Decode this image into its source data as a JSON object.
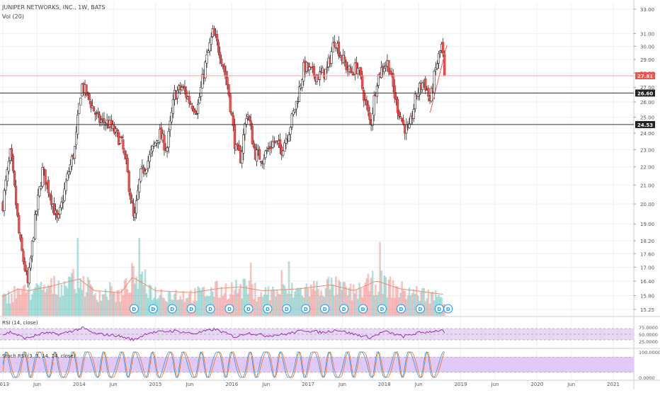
{
  "chart_data": {
    "type": "candlestick",
    "title": "JUNIPER NETWORKS, INC., 1W, BATS",
    "volume_label": "Vol (20)",
    "price_axis": {
      "ticks": [
        "33.00",
        "31.00",
        "30.00",
        "29.00",
        "28.00",
        "27.00",
        "26.00",
        "25.00",
        "24.00",
        "23.00",
        "22.00",
        "21.00",
        "20.00",
        "19.00",
        "18.20",
        "17.60",
        "17.00",
        "16.40",
        "15.80",
        "15.25"
      ],
      "tick_values": [
        33.0,
        31.0,
        30.0,
        29.0,
        28.0,
        27.0,
        26.0,
        25.0,
        24.0,
        23.0,
        22.0,
        21.0,
        20.0,
        19.0,
        18.2,
        17.6,
        17.0,
        16.4,
        15.8,
        15.25
      ],
      "scale": "log"
    },
    "price_badges": [
      {
        "label": "27.81",
        "value": 27.81,
        "color": "#ef5350"
      },
      {
        "label": "26.60",
        "value": 26.6,
        "color": "#222222"
      },
      {
        "label": "24.53",
        "value": 24.53,
        "color": "#222222"
      }
    ],
    "horizontal_lines": [
      {
        "value": 27.81,
        "color": "#f4a0a0"
      },
      {
        "value": 26.6,
        "color": "#333333"
      },
      {
        "value": 24.53,
        "color": "#333333"
      }
    ],
    "x_labels": [
      "2013",
      "Jun",
      "2014",
      "Jun",
      "2015",
      "Jun",
      "2016",
      "Jun",
      "2017",
      "Jun",
      "2018",
      "Jun",
      "2019",
      "Jun",
      "2020",
      "Jun",
      "2021"
    ],
    "x_label_dates": [
      2013.0,
      2013.45,
      2014.0,
      2014.45,
      2015.0,
      2015.45,
      2016.0,
      2016.45,
      2017.0,
      2017.45,
      2018.0,
      2018.45,
      2019.0,
      2019.45,
      2020.0,
      2020.45,
      2021.0
    ],
    "price_keypoints": [
      {
        "t": 2013.0,
        "p": 20.0
      },
      {
        "t": 2013.1,
        "p": 22.8
      },
      {
        "t": 2013.22,
        "p": 18.2
      },
      {
        "t": 2013.33,
        "p": 16.2
      },
      {
        "t": 2013.4,
        "p": 18.5
      },
      {
        "t": 2013.52,
        "p": 21.8
      },
      {
        "t": 2013.62,
        "p": 20.5
      },
      {
        "t": 2013.72,
        "p": 19.0
      },
      {
        "t": 2013.85,
        "p": 21.5
      },
      {
        "t": 2013.95,
        "p": 23.2
      },
      {
        "t": 2014.03,
        "p": 27.2
      },
      {
        "t": 2014.12,
        "p": 26.3
      },
      {
        "t": 2014.25,
        "p": 24.8
      },
      {
        "t": 2014.38,
        "p": 24.6
      },
      {
        "t": 2014.55,
        "p": 23.5
      },
      {
        "t": 2014.62,
        "p": 22.0
      },
      {
        "t": 2014.72,
        "p": 19.0
      },
      {
        "t": 2014.8,
        "p": 21.5
      },
      {
        "t": 2014.92,
        "p": 22.5
      },
      {
        "t": 2015.05,
        "p": 24.0
      },
      {
        "t": 2015.15,
        "p": 23.0
      },
      {
        "t": 2015.25,
        "p": 26.5
      },
      {
        "t": 2015.35,
        "p": 27.0
      },
      {
        "t": 2015.45,
        "p": 26.0
      },
      {
        "t": 2015.55,
        "p": 25.5
      },
      {
        "t": 2015.65,
        "p": 28.5
      },
      {
        "t": 2015.75,
        "p": 31.0
      },
      {
        "t": 2015.85,
        "p": 29.5
      },
      {
        "t": 2015.95,
        "p": 27.0
      },
      {
        "t": 2016.05,
        "p": 23.0
      },
      {
        "t": 2016.12,
        "p": 22.5
      },
      {
        "t": 2016.2,
        "p": 25.5
      },
      {
        "t": 2016.3,
        "p": 22.8
      },
      {
        "t": 2016.4,
        "p": 22.5
      },
      {
        "t": 2016.55,
        "p": 23.5
      },
      {
        "t": 2016.65,
        "p": 23.0
      },
      {
        "t": 2016.75,
        "p": 24.2
      },
      {
        "t": 2016.85,
        "p": 26.0
      },
      {
        "t": 2016.95,
        "p": 28.5
      },
      {
        "t": 2017.05,
        "p": 28.0
      },
      {
        "t": 2017.15,
        "p": 27.8
      },
      {
        "t": 2017.25,
        "p": 28.2
      },
      {
        "t": 2017.35,
        "p": 30.6
      },
      {
        "t": 2017.45,
        "p": 29.0
      },
      {
        "t": 2017.55,
        "p": 28.0
      },
      {
        "t": 2017.65,
        "p": 28.5
      },
      {
        "t": 2017.75,
        "p": 26.0
      },
      {
        "t": 2017.82,
        "p": 24.5
      },
      {
        "t": 2017.9,
        "p": 27.5
      },
      {
        "t": 2017.98,
        "p": 28.5
      },
      {
        "t": 2018.05,
        "p": 28.8
      },
      {
        "t": 2018.15,
        "p": 26.0
      },
      {
        "t": 2018.25,
        "p": 24.5
      },
      {
        "t": 2018.32,
        "p": 24.0
      },
      {
        "t": 2018.42,
        "p": 26.5
      },
      {
        "t": 2018.52,
        "p": 27.5
      },
      {
        "t": 2018.6,
        "p": 26.0
      },
      {
        "t": 2018.68,
        "p": 28.5
      },
      {
        "t": 2018.75,
        "p": 30.0
      },
      {
        "t": 2018.8,
        "p": 27.81
      }
    ],
    "volume_keypoints": [
      {
        "t": 2013.0,
        "v": 0.35
      },
      {
        "t": 2013.2,
        "v": 0.55
      },
      {
        "t": 2013.33,
        "v": 0.5
      },
      {
        "t": 2013.6,
        "v": 0.6
      },
      {
        "t": 2014.0,
        "v": 0.8
      },
      {
        "t": 2014.2,
        "v": 0.5
      },
      {
        "t": 2014.55,
        "v": 0.45
      },
      {
        "t": 2014.7,
        "v": 0.85
      },
      {
        "t": 2015.0,
        "v": 0.5
      },
      {
        "t": 2015.5,
        "v": 0.45
      },
      {
        "t": 2015.8,
        "v": 0.55
      },
      {
        "t": 2016.1,
        "v": 0.6
      },
      {
        "t": 2016.4,
        "v": 0.5
      },
      {
        "t": 2016.9,
        "v": 0.55
      },
      {
        "t": 2017.3,
        "v": 0.65
      },
      {
        "t": 2017.6,
        "v": 0.5
      },
      {
        "t": 2017.9,
        "v": 0.75
      },
      {
        "t": 2018.2,
        "v": 0.55
      },
      {
        "t": 2018.6,
        "v": 0.45
      },
      {
        "t": 2018.8,
        "v": 0.4
      }
    ],
    "dividend_markers": [
      "D",
      "D",
      "D",
      "D",
      "D",
      "D",
      "D",
      "D",
      "D",
      "D",
      "D",
      "D",
      "D",
      "D",
      "D",
      "D",
      "D",
      "D"
    ],
    "dividend_dates": [
      2014.72,
      2014.97,
      2015.22,
      2015.47,
      2015.72,
      2015.97,
      2016.22,
      2016.47,
      2016.72,
      2016.97,
      2017.22,
      2017.47,
      2017.72,
      2017.97,
      2018.22,
      2018.47,
      2018.72,
      2018.78
    ],
    "rsi": {
      "label": "RSI (14, close)",
      "ticks": [
        "75.0000",
        "50.0000",
        "25.0000"
      ],
      "tick_values": [
        75,
        50,
        25
      ],
      "band": [
        30,
        70
      ],
      "keypoints": [
        {
          "t": 2013.0,
          "v": 48
        },
        {
          "t": 2013.1,
          "v": 58
        },
        {
          "t": 2013.3,
          "v": 35
        },
        {
          "t": 2013.55,
          "v": 55
        },
        {
          "t": 2013.75,
          "v": 50
        },
        {
          "t": 2014.05,
          "v": 72
        },
        {
          "t": 2014.2,
          "v": 52
        },
        {
          "t": 2014.5,
          "v": 45
        },
        {
          "t": 2014.72,
          "v": 30
        },
        {
          "t": 2014.9,
          "v": 55
        },
        {
          "t": 2015.25,
          "v": 62
        },
        {
          "t": 2015.5,
          "v": 52
        },
        {
          "t": 2015.78,
          "v": 68
        },
        {
          "t": 2016.05,
          "v": 40
        },
        {
          "t": 2016.2,
          "v": 55
        },
        {
          "t": 2016.45,
          "v": 45
        },
        {
          "t": 2016.7,
          "v": 50
        },
        {
          "t": 2016.95,
          "v": 64
        },
        {
          "t": 2017.2,
          "v": 56
        },
        {
          "t": 2017.38,
          "v": 66
        },
        {
          "t": 2017.6,
          "v": 50
        },
        {
          "t": 2017.82,
          "v": 38
        },
        {
          "t": 2018.0,
          "v": 60
        },
        {
          "t": 2018.25,
          "v": 42
        },
        {
          "t": 2018.45,
          "v": 55
        },
        {
          "t": 2018.75,
          "v": 64
        },
        {
          "t": 2018.8,
          "v": 52
        }
      ]
    },
    "stoch_rsi": {
      "label": "Stoch RSI (3, 3, 14, 14, close)",
      "ticks": [
        "100.0000",
        "0.0000"
      ],
      "tick_values": [
        100,
        0
      ],
      "band": [
        20,
        80
      ],
      "k_color": "#2196f3",
      "d_color": "#ff6d00",
      "cycle_weeks": 11
    }
  }
}
